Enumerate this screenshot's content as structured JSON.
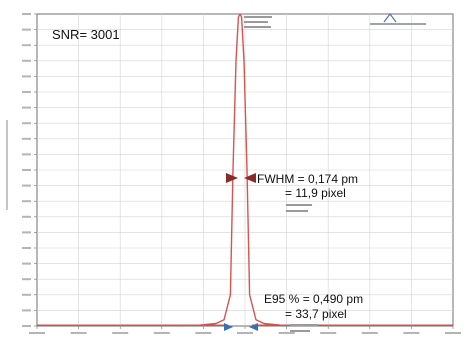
{
  "chart_data": {
    "type": "line",
    "series": [
      {
        "color": "#d9534f",
        "x_rel": [
          -0.8,
          -0.5,
          -0.3,
          -0.2,
          -0.12,
          -0.087,
          -0.05,
          -0.02,
          0,
          0.02,
          0.05,
          0.087,
          0.12,
          0.2,
          0.3,
          0.5,
          0.8
        ],
        "y": [
          0.2,
          0.3,
          0.8,
          2,
          10,
          50,
          85,
          99,
          100,
          99,
          85,
          50,
          10,
          2,
          0.8,
          0.3,
          0.2
        ]
      }
    ],
    "ylim": [
      0,
      100
    ],
    "grid": true,
    "marker_color": "#8b2a26",
    "edge_marker_color": "#3a6fb5",
    "annotations": {
      "snr": "SNR= 3001",
      "fwhm_line1": "FWHM = 0,174 pm",
      "fwhm_line2": "= 11,9 pixel",
      "e95_line1": "E95 % =  0,490 pm",
      "e95_line2": "= 33,7 pixel"
    }
  }
}
